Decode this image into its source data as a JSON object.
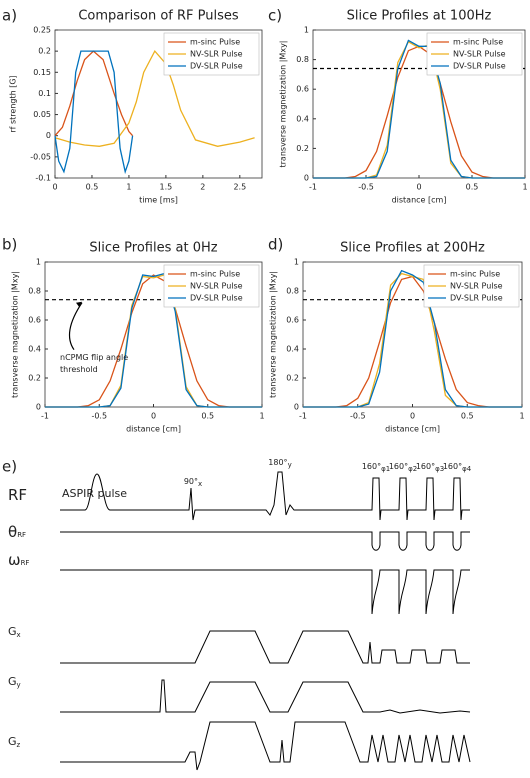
{
  "chart_data": [
    {
      "type": "line",
      "label": "a)",
      "title": "Comparison of RF Pulses",
      "x_label": "time [ms]",
      "y_label": "rf strength [G]",
      "xlim": [
        0,
        2.8
      ],
      "ylim": [
        -0.1,
        0.25
      ],
      "xticks": [
        0,
        0.5,
        1,
        1.5,
        2,
        2.5
      ],
      "yticks": [
        -0.1,
        -0.05,
        0,
        0.05,
        0.1,
        0.15,
        0.2,
        0.25
      ],
      "legend": "upper right",
      "series": [
        {
          "name": "m-sinc Pulse",
          "color": "#d95319",
          "x": [
            0,
            0.1,
            0.2,
            0.3,
            0.4,
            0.52,
            0.65,
            0.8,
            0.9,
            1.0,
            1.05
          ],
          "values": [
            0,
            0.02,
            0.07,
            0.13,
            0.18,
            0.2,
            0.18,
            0.1,
            0.05,
            0.01,
            0
          ]
        },
        {
          "name": "NV-SLR Pulse",
          "color": "#edb120",
          "x": [
            0,
            0.2,
            0.4,
            0.6,
            0.8,
            1.0,
            1.1,
            1.2,
            1.35,
            1.5,
            1.6,
            1.7,
            1.9,
            2.2,
            2.5,
            2.7
          ],
          "values": [
            -0.005,
            -0.015,
            -0.022,
            -0.025,
            -0.018,
            0.03,
            0.08,
            0.15,
            0.2,
            0.17,
            0.12,
            0.06,
            -0.01,
            -0.025,
            -0.015,
            -0.005
          ]
        },
        {
          "name": "DV-SLR Pulse",
          "color": "#0072bd",
          "x": [
            0,
            0.05,
            0.12,
            0.2,
            0.28,
            0.35,
            0.72,
            0.8,
            0.88,
            0.95,
            1.0,
            1.05
          ],
          "values": [
            0,
            -0.06,
            -0.085,
            -0.03,
            0.15,
            0.2,
            0.2,
            0.15,
            -0.03,
            -0.085,
            -0.06,
            0
          ]
        }
      ]
    },
    {
      "type": "line",
      "label": "c)",
      "title": "Slice Profiles at 100Hz",
      "x_label": "distance [cm]",
      "y_label": "transverse magnetization |Mxy|",
      "xlim": [
        -1,
        1
      ],
      "ylim": [
        0,
        1
      ],
      "xticks": [
        -1,
        -0.5,
        0,
        0.5,
        1
      ],
      "yticks": [
        0,
        0.2,
        0.4,
        0.6,
        0.8,
        1
      ],
      "legend": "upper right",
      "threshold": 0.74,
      "x": [
        -1,
        -0.9,
        -0.8,
        -0.7,
        -0.6,
        -0.5,
        -0.4,
        -0.3,
        -0.2,
        -0.1,
        0,
        0.1,
        0.2,
        0.3,
        0.4,
        0.5,
        0.6,
        0.7,
        0.8,
        0.9,
        1
      ],
      "series": [
        {
          "name": "m-sinc Pulse",
          "color": "#d95319",
          "values": [
            0,
            0,
            0,
            0,
            0.01,
            0.05,
            0.18,
            0.42,
            0.68,
            0.86,
            0.89,
            0.84,
            0.64,
            0.38,
            0.15,
            0.04,
            0.01,
            0,
            0,
            0,
            0
          ]
        },
        {
          "name": "NV-SLR Pulse",
          "color": "#edb120",
          "values": [
            0,
            0,
            0,
            0,
            0,
            0,
            0.02,
            0.22,
            0.78,
            0.92,
            0.88,
            0.9,
            0.6,
            0.1,
            0.01,
            0,
            0,
            0,
            0,
            0,
            0
          ]
        },
        {
          "name": "DV-SLR Pulse",
          "color": "#0072bd",
          "values": [
            0,
            0,
            0,
            0,
            0,
            0,
            0.01,
            0.18,
            0.74,
            0.93,
            0.89,
            0.89,
            0.64,
            0.12,
            0.01,
            0,
            0,
            0,
            0,
            0,
            0
          ]
        }
      ]
    },
    {
      "type": "line",
      "label": "b)",
      "title": "Slice Profiles at 0Hz",
      "x_label": "distance [cm]",
      "y_label": "transverse magnetization |Mxy|",
      "xlim": [
        -1,
        1
      ],
      "ylim": [
        0,
        1
      ],
      "xticks": [
        -1,
        -0.5,
        0,
        0.5,
        1
      ],
      "yticks": [
        0,
        0.2,
        0.4,
        0.6,
        0.8,
        1
      ],
      "legend": "upper right",
      "threshold": 0.74,
      "annotation": [
        "nCPMG flip angle",
        "threshold"
      ],
      "x": [
        -1,
        -0.9,
        -0.8,
        -0.7,
        -0.6,
        -0.5,
        -0.4,
        -0.3,
        -0.2,
        -0.1,
        0,
        0.1,
        0.2,
        0.3,
        0.4,
        0.5,
        0.6,
        0.7,
        0.8,
        0.9,
        1
      ],
      "series": [
        {
          "name": "m-sinc Pulse",
          "color": "#d95319",
          "values": [
            0,
            0,
            0,
            0,
            0.01,
            0.05,
            0.18,
            0.4,
            0.65,
            0.85,
            0.91,
            0.87,
            0.68,
            0.42,
            0.18,
            0.05,
            0.01,
            0,
            0,
            0,
            0
          ]
        },
        {
          "name": "NV-SLR Pulse",
          "color": "#edb120",
          "values": [
            0,
            0,
            0,
            0,
            0,
            0,
            0.01,
            0.15,
            0.7,
            0.9,
            0.89,
            0.91,
            0.68,
            0.14,
            0.01,
            0,
            0,
            0,
            0,
            0,
            0
          ]
        },
        {
          "name": "DV-SLR Pulse",
          "color": "#0072bd",
          "values": [
            0,
            0,
            0,
            0,
            0,
            0,
            0.01,
            0.13,
            0.68,
            0.91,
            0.9,
            0.92,
            0.66,
            0.12,
            0.01,
            0,
            0,
            0,
            0,
            0,
            0
          ]
        }
      ]
    },
    {
      "type": "line",
      "label": "d)",
      "title": "Slice Profiles at 200Hz",
      "x_label": "distance [cm]",
      "y_label": "transverse magnetization |Mxy|",
      "xlim": [
        -1,
        1
      ],
      "ylim": [
        0,
        1
      ],
      "xticks": [
        -1,
        -0.5,
        0,
        0.5,
        1
      ],
      "yticks": [
        0,
        0.2,
        0.4,
        0.6,
        0.8,
        1
      ],
      "legend": "upper right",
      "threshold": 0.74,
      "x": [
        -1,
        -0.9,
        -0.8,
        -0.7,
        -0.6,
        -0.5,
        -0.4,
        -0.3,
        -0.2,
        -0.1,
        0,
        0.1,
        0.2,
        0.3,
        0.4,
        0.5,
        0.6,
        0.7,
        0.8,
        0.9,
        1
      ],
      "series": [
        {
          "name": "m-sinc Pulse",
          "color": "#d95319",
          "values": [
            0,
            0,
            0,
            0,
            0.01,
            0.06,
            0.2,
            0.45,
            0.72,
            0.88,
            0.9,
            0.8,
            0.58,
            0.33,
            0.12,
            0.03,
            0.01,
            0,
            0,
            0,
            0
          ]
        },
        {
          "name": "NV-SLR Pulse",
          "color": "#edb120",
          "values": [
            0,
            0,
            0,
            0,
            0,
            0,
            0.03,
            0.3,
            0.84,
            0.92,
            0.9,
            0.88,
            0.52,
            0.08,
            0.01,
            0,
            0,
            0,
            0,
            0,
            0
          ]
        },
        {
          "name": "DV-SLR Pulse",
          "color": "#0072bd",
          "values": [
            0,
            0,
            0,
            0,
            0,
            0,
            0.02,
            0.24,
            0.8,
            0.94,
            0.91,
            0.86,
            0.58,
            0.12,
            0.01,
            0,
            0,
            0,
            0,
            0,
            0
          ]
        }
      ]
    }
  ],
  "diagram": {
    "label": "e)",
    "rows": [
      {
        "symbol": "RF",
        "sub": ""
      },
      {
        "symbol": "θ",
        "sub": "RF"
      },
      {
        "symbol": "ω",
        "sub": "RF"
      },
      {
        "symbol": "G",
        "sub": "x"
      },
      {
        "symbol": "G",
        "sub": "y"
      },
      {
        "symbol": "G",
        "sub": "z"
      }
    ],
    "annotations": [
      {
        "text": "ASPIR pulse",
        "sub": ""
      },
      {
        "text": "90°",
        "sub": "x"
      },
      {
        "text": "180°",
        "sub": "y"
      },
      {
        "text": "160°",
        "sub": "φ1"
      },
      {
        "text": "160°",
        "sub": "φ2"
      },
      {
        "text": "160°",
        "sub": "φ3"
      },
      {
        "text": "160°",
        "sub": "φ4"
      }
    ]
  }
}
